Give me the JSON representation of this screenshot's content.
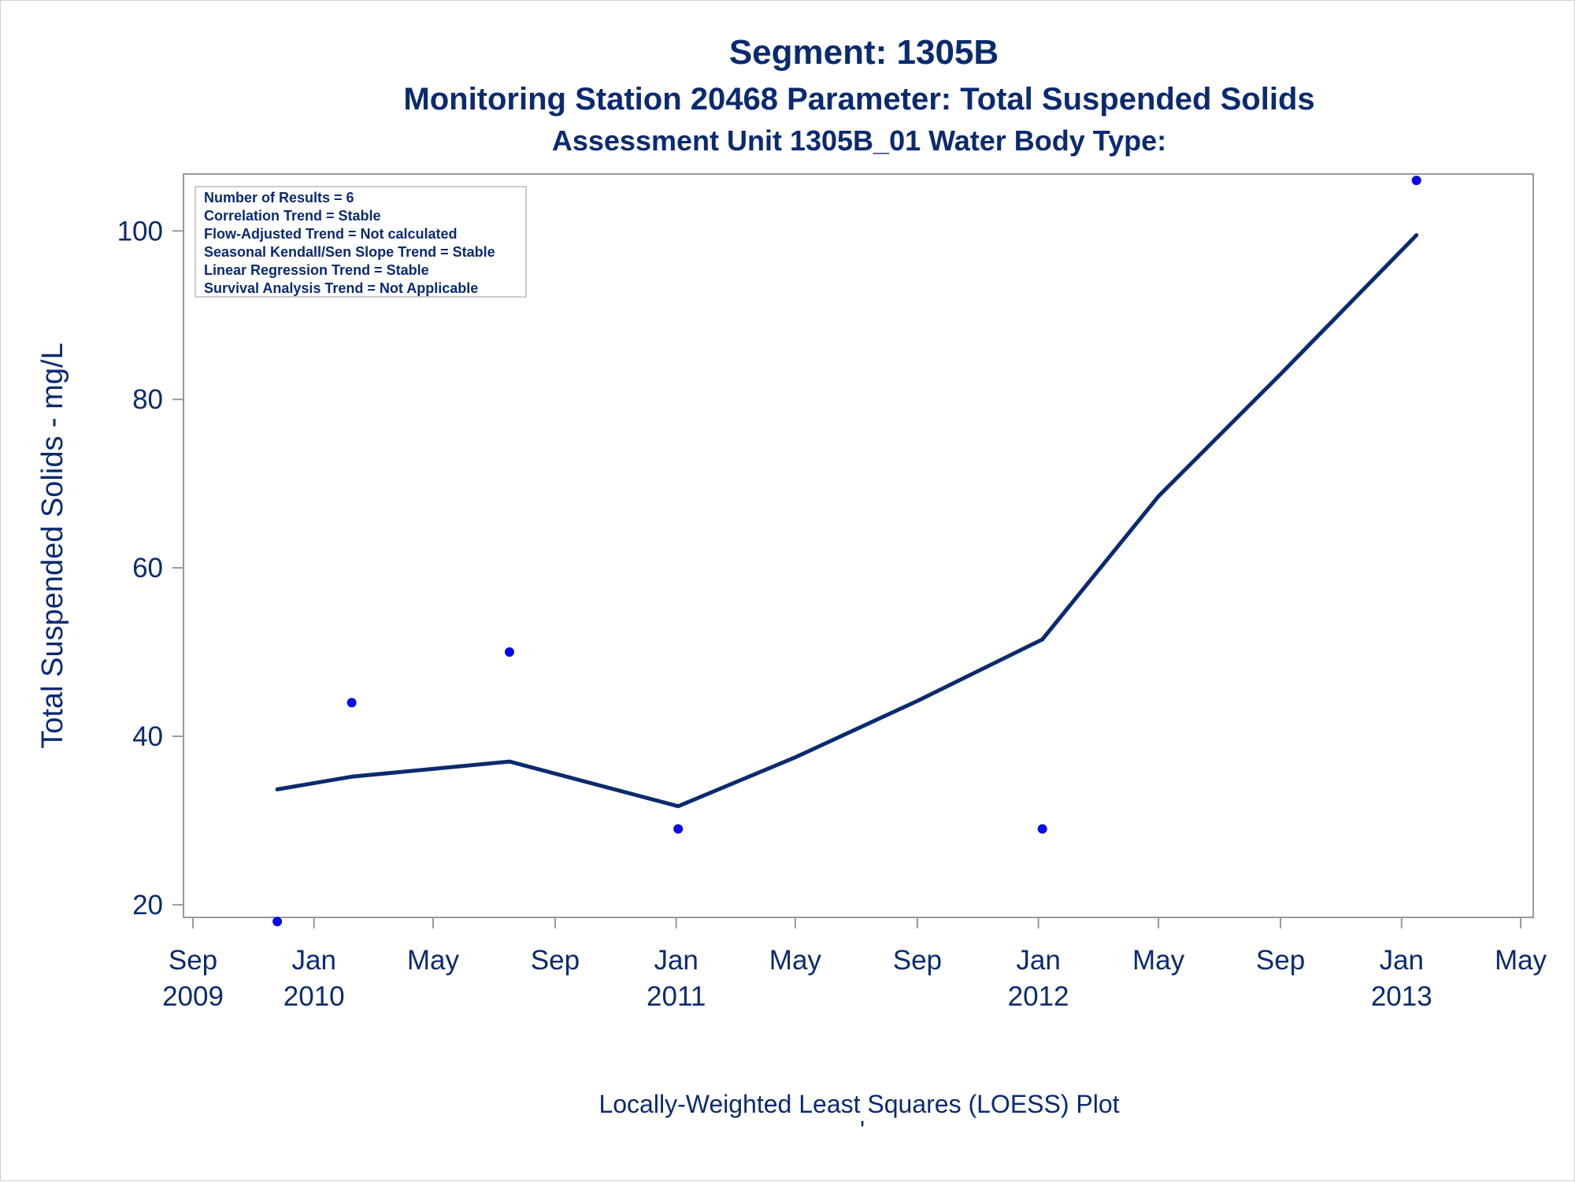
{
  "chart_data": {
    "type": "scatter",
    "title": "Segment: 1305B",
    "subtitle": "Monitoring Station 20468 Parameter: Total Suspended Solids",
    "subtitle2": "Assessment Unit 1305B_01   Water Body Type:",
    "ylabel": "Total Suspended Solids - mg/L",
    "footnote": "Locally-Weighted Least Squares (LOESS) Plot",
    "footnote_mark": "'",
    "ylim": [
      17,
      109
    ],
    "xlim": [
      "2009-09-01",
      "2013-05-01"
    ],
    "y_ticks": [
      20,
      40,
      60,
      80,
      100
    ],
    "x_ticks": [
      {
        "date": "2009-09-01",
        "month": "Sep",
        "year": "2009"
      },
      {
        "date": "2010-01-01",
        "month": "Jan",
        "year": "2010"
      },
      {
        "date": "2010-05-01",
        "month": "May",
        "year": ""
      },
      {
        "date": "2010-09-01",
        "month": "Sep",
        "year": ""
      },
      {
        "date": "2011-01-01",
        "month": "Jan",
        "year": "2011"
      },
      {
        "date": "2011-05-01",
        "month": "May",
        "year": ""
      },
      {
        "date": "2011-09-01",
        "month": "Sep",
        "year": ""
      },
      {
        "date": "2012-01-01",
        "month": "Jan",
        "year": "2012"
      },
      {
        "date": "2012-05-01",
        "month": "May",
        "year": ""
      },
      {
        "date": "2012-09-01",
        "month": "Sep",
        "year": ""
      },
      {
        "date": "2013-01-01",
        "month": "Jan",
        "year": "2013"
      },
      {
        "date": "2013-05-01",
        "month": "May",
        "year": ""
      }
    ],
    "points": [
      {
        "x": "2009-11-25",
        "y": 18
      },
      {
        "x": "2010-02-08",
        "y": 44
      },
      {
        "x": "2010-07-17",
        "y": 50
      },
      {
        "x": "2011-01-03",
        "y": 29
      },
      {
        "x": "2012-01-05",
        "y": 29
      },
      {
        "x": "2013-01-16",
        "y": 106
      }
    ],
    "loess": [
      {
        "x": "2009-11-25",
        "y": 33.7
      },
      {
        "x": "2010-02-08",
        "y": 35.2
      },
      {
        "x": "2010-07-17",
        "y": 37.0
      },
      {
        "x": "2011-01-03",
        "y": 31.7
      },
      {
        "x": "2011-05-01",
        "y": 37.5
      },
      {
        "x": "2011-09-01",
        "y": 44.2
      },
      {
        "x": "2012-01-05",
        "y": 51.5
      },
      {
        "x": "2012-05-01",
        "y": 68.5
      },
      {
        "x": "2012-09-01",
        "y": 83.0
      },
      {
        "x": "2013-01-16",
        "y": 99.5
      }
    ],
    "grid": false,
    "legend": "none",
    "colors": {
      "line": "#0b2a6f",
      "marker": "#0a0ae6",
      "text": "#0b2a6f",
      "axis": "#999999"
    }
  },
  "stats_box": [
    "Number of Results = 6",
    "Correlation Trend = Stable",
    "Flow-Adjusted Trend = Not calculated",
    "Seasonal Kendall/Sen Slope Trend = Stable",
    "Linear Regression Trend = Stable",
    "Survival Analysis Trend = Not Applicable"
  ]
}
